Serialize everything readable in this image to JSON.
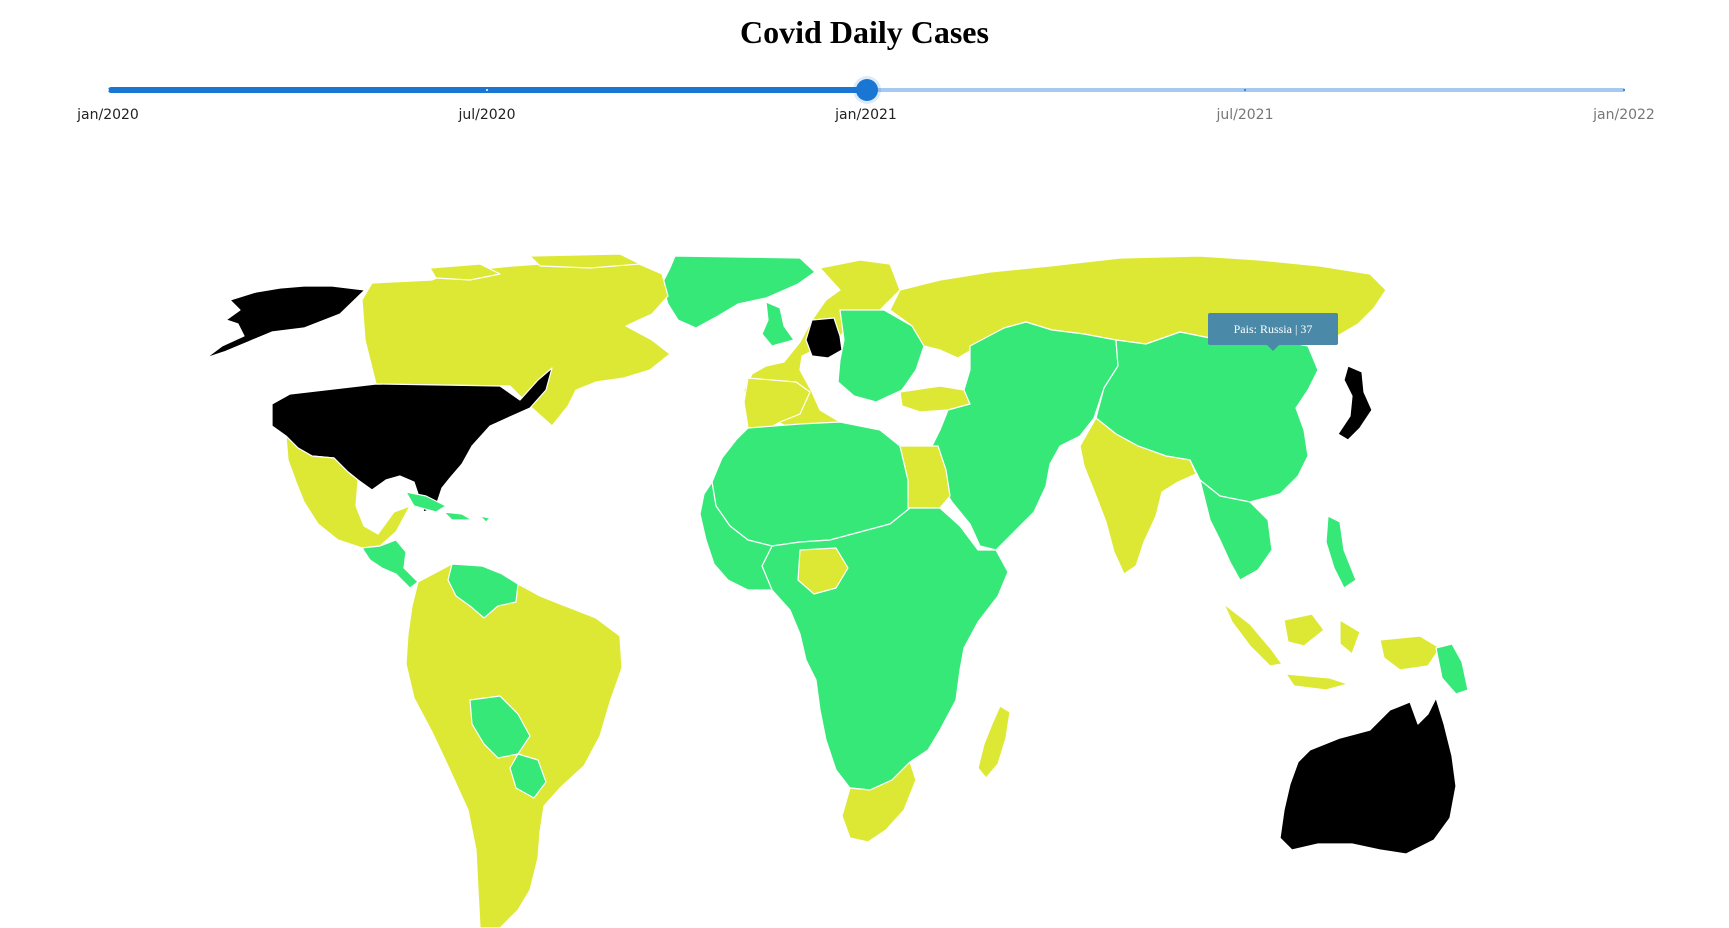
{
  "page": {
    "title": "Covid Daily Cases"
  },
  "slider": {
    "marks": [
      "jan/2020",
      "jul/2020",
      "jan/2021",
      "jul/2021",
      "jan/2022"
    ],
    "selected": "jan/2021",
    "position": 0.5
  },
  "colors": {
    "high": "#000000",
    "medium": "#dde834",
    "low": "#35e878",
    "slider_active": "#1976d2",
    "slider_inactive": "#a7c8ef",
    "tooltip_bg": "#4a8aa8"
  },
  "tooltip": {
    "text": "Pais: Russia | 37"
  },
  "regions": {
    "black": [
      "United States",
      "Alaska",
      "Germany",
      "Japan",
      "Australia"
    ],
    "yellow": [
      "Canada",
      "Mexico",
      "South America",
      "Russia",
      "Western Europe",
      "Turkey",
      "Egypt",
      "India",
      "Nigeria",
      "Southern Africa",
      "Madagascar",
      "Indonesia",
      "Papua New Guinea"
    ],
    "green": [
      "Greenland",
      "Central America",
      "Caribbean",
      "North Africa",
      "Central Africa",
      "Middle East",
      "Central Asia",
      "China",
      "Southeast Asia",
      "Eastern Europe",
      "Bolivia",
      "Paraguay"
    ]
  }
}
